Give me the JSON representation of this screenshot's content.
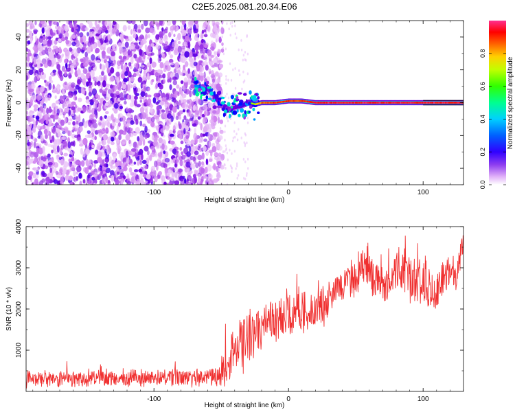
{
  "title": "C2E5.2025.081.20.34.E06",
  "chart_data": [
    {
      "type": "heatmap",
      "xlabel": "Height of straight line (km)",
      "ylabel": "Frequency (Hz)",
      "xlim": [
        -195,
        130
      ],
      "ylim": [
        -50,
        50
      ],
      "xticks": [
        -100,
        0,
        100
      ],
      "yticks": [
        -40,
        -20,
        0,
        20,
        40
      ],
      "colorbar": {
        "label": "Normalized spectral amplitude",
        "range": [
          0.0,
          1.0
        ],
        "ticks": [
          0.0,
          0.2,
          0.4,
          0.6,
          0.8
        ],
        "ticklabels": [
          "0.0",
          "0.2",
          "0.4",
          "0.6",
          "0.8"
        ],
        "colors": [
          "#ffffff",
          "#d080f0",
          "#7000e0",
          "#0000ff",
          "#00c8ff",
          "#00ff80",
          "#50ff00",
          "#ffe000",
          "#ff8000",
          "#ff0000",
          "#ff40a0"
        ]
      },
      "noise_region_x": [
        -195,
        -55
      ],
      "signal_track": {
        "x": [
          -70,
          -60,
          -55,
          -50,
          -45,
          -40,
          -35,
          -30,
          -25,
          -20,
          -10,
          0,
          10,
          20,
          40,
          60,
          80,
          100,
          130
        ],
        "frequency": [
          10,
          8,
          4,
          -2,
          -4,
          -3,
          -2,
          0,
          -1,
          0,
          0,
          1,
          1,
          0,
          0,
          0,
          0,
          0,
          0
        ],
        "amplitude": [
          0.3,
          0.4,
          0.45,
          0.35,
          0.35,
          0.45,
          0.5,
          0.6,
          0.7,
          0.85,
          0.9,
          0.9,
          0.9,
          0.95,
          0.95,
          0.95,
          0.95,
          0.95,
          0.95
        ]
      }
    },
    {
      "type": "line",
      "xlabel": "Height of straight line (km)",
      "ylabel": "SNR (10 * v/v)",
      "xlim": [
        -195,
        130
      ],
      "ylim": [
        0,
        4000
      ],
      "xticks": [
        -100,
        0,
        100
      ],
      "yticks": [
        1000,
        2000,
        3000,
        4000
      ],
      "color": "#f03030",
      "envelope": {
        "x": [
          -195,
          -150,
          -100,
          -60,
          -50,
          -45,
          -40,
          -35,
          -30,
          -20,
          -10,
          0,
          10,
          20,
          30,
          40,
          50,
          55,
          60,
          65,
          70,
          80,
          85,
          90,
          95,
          100,
          105,
          110,
          115,
          120,
          125,
          130
        ],
        "mean": [
          300,
          310,
          320,
          350,
          380,
          600,
          1200,
          1100,
          1300,
          1500,
          1700,
          1800,
          1900,
          2000,
          2300,
          2600,
          2800,
          3000,
          2900,
          2700,
          2500,
          2900,
          3000,
          2700,
          2600,
          2700,
          2500,
          2300,
          2700,
          2900,
          2900,
          3500
        ],
        "spread": [
          200,
          220,
          230,
          250,
          300,
          600,
          800,
          800,
          700,
          600,
          600,
          600,
          550,
          500,
          500,
          450,
          500,
          550,
          500,
          500,
          450,
          500,
          550,
          600,
          600,
          650,
          600,
          550,
          500,
          450,
          450,
          500
        ]
      }
    }
  ]
}
